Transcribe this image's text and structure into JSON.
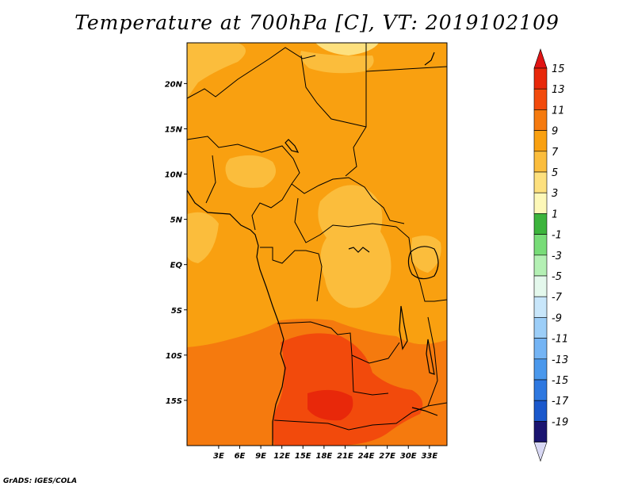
{
  "title": "Temperature at 700hPa [C], VT: 2019102109",
  "credit": "GrADS: IGES/COLA",
  "map": {
    "lon_range": [
      -1.5,
      35.5
    ],
    "lat_range": [
      -20,
      24.5
    ],
    "lat_ticks": [
      {
        "value": 20,
        "label": "20N"
      },
      {
        "value": 15,
        "label": "15N"
      },
      {
        "value": 10,
        "label": "10N"
      },
      {
        "value": 5,
        "label": "5N"
      },
      {
        "value": 0,
        "label": "EQ"
      },
      {
        "value": -5,
        "label": "5S"
      },
      {
        "value": -10,
        "label": "10S"
      },
      {
        "value": -15,
        "label": "15S"
      }
    ],
    "lon_ticks": [
      {
        "value": 3,
        "label": "3E"
      },
      {
        "value": 6,
        "label": "6E"
      },
      {
        "value": 9,
        "label": "9E"
      },
      {
        "value": 12,
        "label": "12E"
      },
      {
        "value": 15,
        "label": "15E"
      },
      {
        "value": 18,
        "label": "18E"
      },
      {
        "value": 21,
        "label": "21E"
      },
      {
        "value": 24,
        "label": "24E"
      },
      {
        "value": 27,
        "label": "27E"
      },
      {
        "value": 30,
        "label": "30E"
      },
      {
        "value": 33,
        "label": "33E"
      }
    ]
  },
  "colorbar": {
    "levels": [
      {
        "label": "15",
        "color": "#e8280a"
      },
      {
        "label": "13",
        "color": "#f24a0c"
      },
      {
        "label": "11",
        "color": "#f57a0e"
      },
      {
        "label": "9",
        "color": "#f9a010"
      },
      {
        "label": "7",
        "color": "#fbbd3c"
      },
      {
        "label": "5",
        "color": "#fde07e"
      },
      {
        "label": "3",
        "color": "#fdf8b8"
      },
      {
        "label": "1",
        "color": "#3cb43c"
      },
      {
        "label": "-1",
        "color": "#78dc78"
      },
      {
        "label": "-3",
        "color": "#b4f0b4"
      },
      {
        "label": "-5",
        "color": "#e4f8ec"
      },
      {
        "label": "-7",
        "color": "#c8e6fa"
      },
      {
        "label": "-9",
        "color": "#9ccef8"
      },
      {
        "label": "-11",
        "color": "#74b4f4"
      },
      {
        "label": "-13",
        "color": "#4a98ec"
      },
      {
        "label": "-15",
        "color": "#2e78e0"
      },
      {
        "label": "-17",
        "color": "#1a58cc"
      },
      {
        "label": "-19",
        "color": "#0c2c9c"
      }
    ],
    "top_arrow_color": "#e01414",
    "top_block_color": "#1a1470",
    "bottom_arrow_color": "#d8d8f4"
  }
}
